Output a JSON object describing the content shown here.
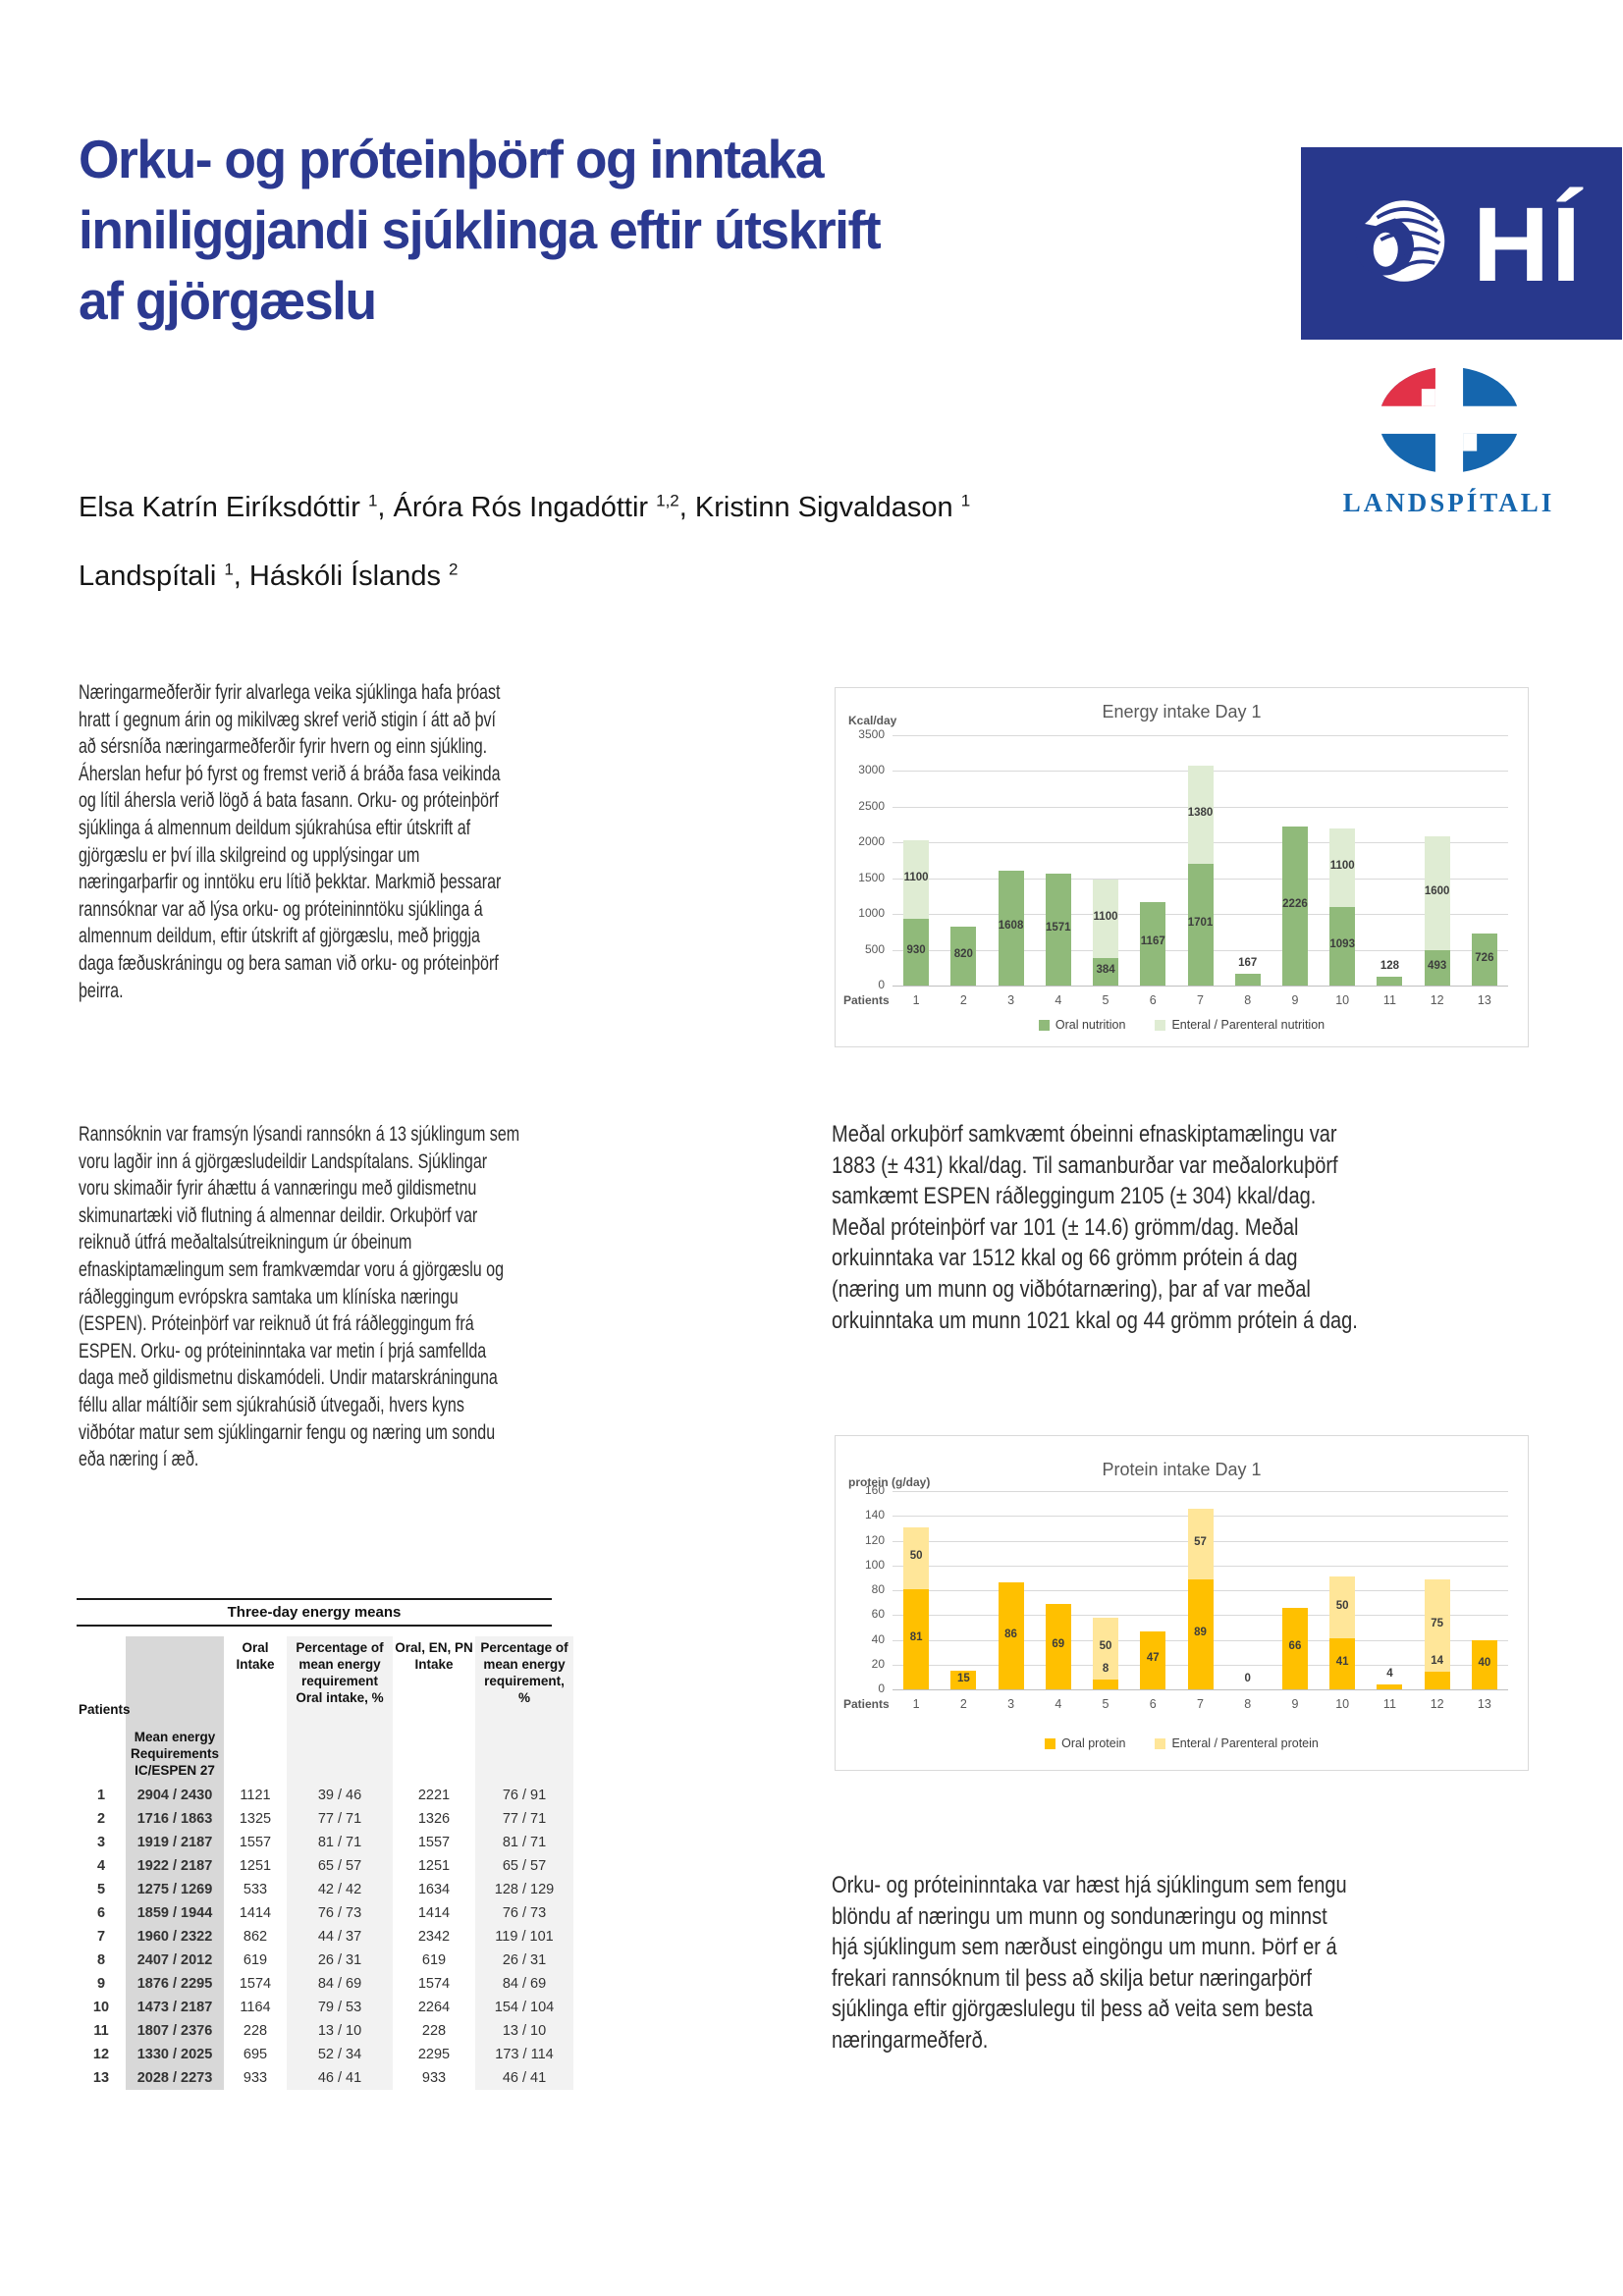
{
  "page": {
    "title": {
      "line1": "Orku- og próteinþörf og inntaka",
      "line2": "inniliggjandi sjúklinga eftir útskrift",
      "line3": "af gjörgæslu"
    },
    "authors": [
      {
        "name": "Elsa Katrín Eiríksdóttir",
        "sup": "1"
      },
      {
        "name": "Áróra Rós Ingadóttir",
        "sup": "1,2"
      },
      {
        "name": "Kristinn Sigvaldason",
        "sup": "1"
      }
    ],
    "affiliations": [
      {
        "name": "Landspítali",
        "sup": "1"
      },
      {
        "name": "Háskóli Íslands",
        "sup": "2"
      }
    ],
    "logos": {
      "hi_text": "HÍ",
      "landspitali_text": "LANDSPÍTALI"
    },
    "paragraphs": {
      "intro_lines": [
        "Næringarmeðferðir fyrir alvarlega veika sjúklinga hafa þróast",
        "hratt í gegnum árin og mikilvæg skref verið stigin í átt að því",
        "að sérsníða næringarmeðferðir fyrir hvern og einn sjúkling.",
        "Áherslan hefur þó fyrst og fremst verið á bráða fasa veikinda",
        "og lítil áhersla verið lögð á bata fasann. Orku- og próteinþörf",
        "sjúklinga á almennum deildum sjúkrahúsa eftir útskrift af",
        "gjörgæslu er því illa skilgreind og upplýsingar um",
        "næringarþarfir og inntöku eru lítið þekktar. Markmið þessarar",
        "rannsóknar var að lýsa orku- og próteininntöku sjúklinga á",
        "almennum deildum, eftir útskrift af gjörgæslu, með þriggja",
        "daga fæðuskráningu og bera saman við orku- og próteinþörf",
        "þeirra."
      ],
      "methods_lines": [
        "Rannsóknin var framsýn lýsandi rannsókn á 13 sjúklingum sem",
        "voru lagðir inn á gjörgæsludeildir Landspítalans. Sjúklingar",
        "voru skimaðir fyrir áhættu á vannæringu með gildismetnu",
        "skimunartæki við flutning á almennar deildir. Orkuþörf var",
        "reiknuð útfrá meðaltalsútreikningum úr óbeinum",
        "efnaskiptamælingum sem framkvæmdar voru á gjörgæslu og",
        "ráðleggingum evrópskra samtaka um klíníska næringu",
        "(ESPEN). Próteinþörf var reiknuð út frá ráðleggingum frá",
        "ESPEN. Orku- og próteininntaka var metin í þrjá samfellda",
        "daga með gildismetnu diskamódeli. Undir matarskráninguna",
        "féllu allar máltíðir sem sjúkrahúsið útvegaði, hvers kyns",
        "viðbótar matur sem sjúklingarnir fengu og næring um sondu",
        "eða næring í æð."
      ],
      "results_lines": [
        "Meðal orkuþörf samkvæmt óbeinni efnaskiptamælingu var",
        "1883 (± 431) kkal/dag. Til samanburðar var meðalorkuþörf",
        "samkæmt ESPEN ráðleggingum 2105 (± 304) kkal/dag.",
        "Meðal próteinþörf var 101 (± 14.6) grömm/dag. Meðal",
        "orkuinntaka var 1512 kkal og 66 grömm prótein á dag",
        "(næring um munn og viðbótarnæring), þar af var meðal",
        "orkuinntaka um munn 1021 kkal og 44 grömm prótein á dag."
      ],
      "conclusion_lines": [
        "Orku- og próteininntaka var hæst hjá sjúklingum sem fengu",
        "blöndu af næringu um munn og sondunæringu og minnst",
        "hjá sjúklingum sem nærðust eingöngu um munn. Þörf er á",
        "frekari rannsóknum til þess að skilja betur næringarþörf",
        "sjúklinga eftir gjörgæslulegu til þess að veita sem besta",
        "næringarmeðferð."
      ]
    }
  },
  "table": {
    "title": "Three-day energy means",
    "col_headers": [
      "Patients",
      "Mean energy Requirements IC/ESPEN 27",
      "Oral Intake",
      "Percentage of mean energy requirement Oral intake, %",
      "Oral, EN, PN Intake",
      "Percentage of mean energy requirement, %"
    ],
    "rows": [
      [
        "1",
        "2904 / 2430",
        "1121",
        "39 / 46",
        "2221",
        "76 / 91"
      ],
      [
        "2",
        "1716 / 1863",
        "1325",
        "77 / 71",
        "1326",
        "77 / 71"
      ],
      [
        "3",
        "1919 / 2187",
        "1557",
        "81 / 71",
        "1557",
        "81 / 71"
      ],
      [
        "4",
        "1922 / 2187",
        "1251",
        "65 / 57",
        "1251",
        "65 / 57"
      ],
      [
        "5",
        "1275 / 1269",
        "533",
        "42 / 42",
        "1634",
        "128 / 129"
      ],
      [
        "6",
        "1859 / 1944",
        "1414",
        "76 / 73",
        "1414",
        "76 / 73"
      ],
      [
        "7",
        "1960 / 2322",
        "862",
        "44 / 37",
        "2342",
        "119 / 101"
      ],
      [
        "8",
        "2407 / 2012",
        "619",
        "26 / 31",
        "619",
        "26 / 31"
      ],
      [
        "9",
        "1876 / 2295",
        "1574",
        "84 / 69",
        "1574",
        "84 / 69"
      ],
      [
        "10",
        "1473 / 2187",
        "1164",
        "79 / 53",
        "2264",
        "154 / 104"
      ],
      [
        "11",
        "1807 / 2376",
        "228",
        "13 / 10",
        "228",
        "13 / 10"
      ],
      [
        "12",
        "1330 / 2025",
        "695",
        "52 / 34",
        "2295",
        "173 / 114"
      ],
      [
        "13",
        "2028 / 2273",
        "933",
        "46 / 41",
        "933",
        "46 / 41"
      ]
    ]
  },
  "chart_data": [
    {
      "type": "bar",
      "stacked": true,
      "title": "Energy intake Day 1",
      "ylabel": "Kcal/day",
      "xlabel": "Patients",
      "categories": [
        "1",
        "2",
        "3",
        "4",
        "5",
        "6",
        "7",
        "8",
        "9",
        "10",
        "11",
        "12",
        "13"
      ],
      "ylim": [
        0,
        3500
      ],
      "ytick": 500,
      "grid": true,
      "legend_position": "bottom",
      "series": [
        {
          "name": "Oral nutrition",
          "color": "#90BA7A",
          "values": [
            930,
            820,
            1608,
            1571,
            384,
            1167,
            1701,
            167,
            2226,
            1093,
            128,
            493,
            726
          ]
        },
        {
          "name": "Enteral / Parenteral nutrition",
          "color": "#DFECD3",
          "values": [
            1100,
            0,
            0,
            0,
            1100,
            0,
            1380,
            0,
            0,
            1100,
            0,
            1600,
            0
          ]
        }
      ]
    },
    {
      "type": "bar",
      "stacked": true,
      "title": "Protein intake Day 1",
      "ylabel": "protein (g/day)",
      "xlabel": "Patients",
      "categories": [
        "1",
        "2",
        "3",
        "4",
        "5",
        "6",
        "7",
        "8",
        "9",
        "10",
        "11",
        "12",
        "13"
      ],
      "ylim": [
        0,
        160
      ],
      "ytick": 20,
      "grid": true,
      "legend_position": "bottom",
      "series": [
        {
          "name": "Oral protein",
          "color": "#FFC000",
          "values": [
            81,
            15,
            86,
            69,
            8,
            47,
            89,
            0,
            66,
            41,
            4,
            14,
            40
          ]
        },
        {
          "name": "Enteral / Parenteral protein",
          "color": "#FFE699",
          "values": [
            50,
            0,
            0,
            0,
            50,
            0,
            57,
            0,
            0,
            50,
            0,
            75,
            0
          ]
        }
      ]
    }
  ],
  "colors": {
    "title_blue": "#2B3990",
    "hi_logo_blue": "#28388C",
    "landspitali_blue": "#1566AE",
    "landspitali_red": "#E23248",
    "oral_green": "#90BA7A",
    "enteral_green": "#DFECD3",
    "oral_orange": "#FFC000",
    "enteral_yellow": "#FFE699",
    "chart_text_gray": "#595959",
    "grid_gray": "#D9D9D9"
  }
}
